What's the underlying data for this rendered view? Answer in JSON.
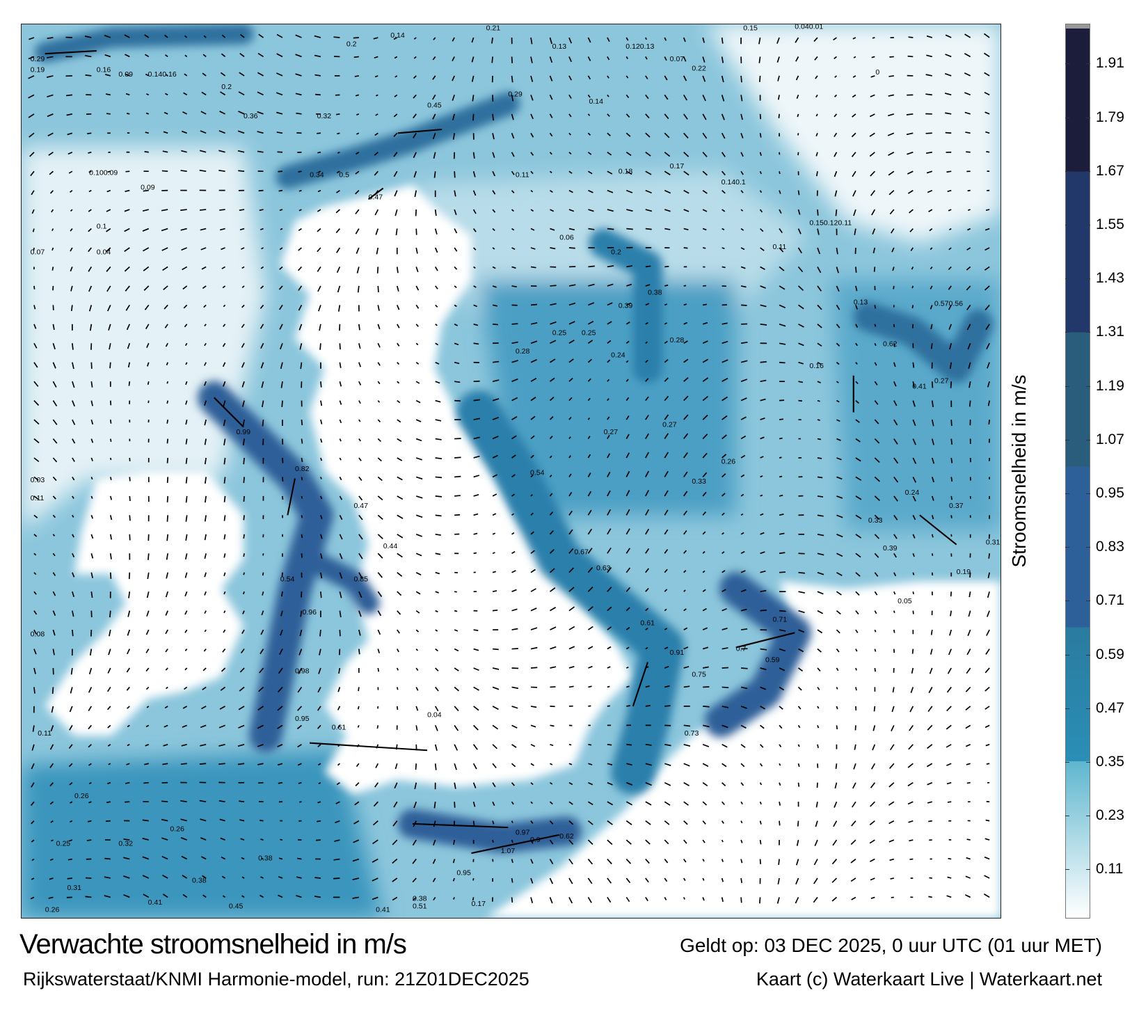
{
  "title": "Verwachte stroomsnelheid in m/s",
  "valid_time": "Geldt op: 03 DEC 2025, 0 uur UTC (01 uur MET)",
  "source": "Rijkswaterstaat/KNMI Harmonie-model, run: 21Z01DEC2025",
  "credit": "Kaart (c) Waterkaart Live | Waterkaart.net",
  "colorbar": {
    "label": "Stroomsnelheid in m/s",
    "ticks": [
      "1.91",
      "1.79",
      "1.67",
      "1.55",
      "1.43",
      "1.31",
      "1.19",
      "1.07",
      "0.95",
      "0.83",
      "0.71",
      "0.59",
      "0.47",
      "0.35",
      "0.23",
      "0.11"
    ],
    "range": [
      0,
      1.99
    ],
    "colors": {
      "low": "#ffffff",
      "light": "#5fb6cf",
      "mid": "#2a8fb6",
      "mid2": "#2a7b9f",
      "high": "#2d5f98",
      "higher": "#2a5d7c",
      "dark": "#22386b",
      "darkest": "#1b1d3b"
    }
  },
  "map": {
    "labels": [
      "0.29",
      "0.19",
      "0.16",
      "0.09",
      "0.140.16",
      "0.2",
      "0.14",
      "0.21",
      "0.13",
      "0.120.13",
      "0.07",
      "0.22",
      "0.15",
      "0.040.01",
      "0",
      "0.2",
      "0.36",
      "0.32",
      "0.45",
      "0.29",
      "0.14",
      "0.100.09",
      "0.09",
      "0.34",
      "0.5",
      "0.47",
      "0.11",
      "0.18",
      "0.17",
      "0.140.1",
      "0.150.120.11",
      "0.1",
      "0.07",
      "0.04",
      "0.06",
      "0.2",
      "0.11",
      "0.13",
      "0.570.56",
      "0.38",
      "0.39",
      "0.28",
      "0.28",
      "0.25",
      "0.25",
      "0.24",
      "0.62",
      "0.41",
      "0.27",
      "0.16",
      "0.99",
      "0.82",
      "0.47",
      "0.44",
      "0.54",
      "0.85",
      "0.96",
      "0.98",
      "0.95",
      "0.61",
      "0.54",
      "0.67",
      "0.63",
      "0.61",
      "0.91",
      "0.75",
      "0.7",
      "0.59",
      "0.71",
      "0.73",
      "1.07",
      "0.97",
      "0.9",
      "0.95",
      "0.62",
      "0.17",
      "0.26",
      "0.41",
      "0.45",
      "0.41",
      "0.51",
      "0.38",
      "0.26",
      "0.32",
      "0.25",
      "0.38",
      "0.38",
      "0.31",
      "0.26",
      "0.11",
      "0.08",
      "0.03",
      "0.11",
      "0.04",
      "0.37",
      "0.31",
      "0.19",
      "0.05",
      "0.26",
      "0.33",
      "0.27",
      "0.27",
      "0.24",
      "0.33",
      "0.39"
    ]
  }
}
